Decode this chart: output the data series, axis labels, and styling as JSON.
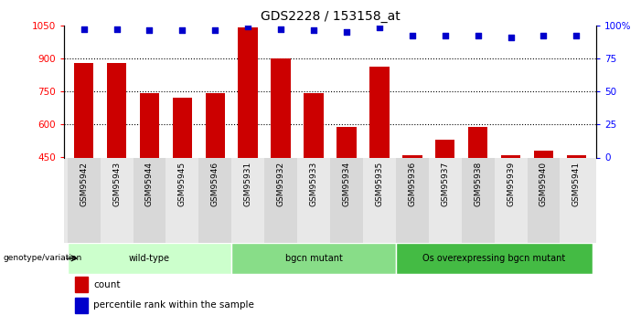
{
  "title": "GDS2228 / 153158_at",
  "samples": [
    "GSM95942",
    "GSM95943",
    "GSM95944",
    "GSM95945",
    "GSM95946",
    "GSM95931",
    "GSM95932",
    "GSM95933",
    "GSM95934",
    "GSM95935",
    "GSM95936",
    "GSM95937",
    "GSM95938",
    "GSM95939",
    "GSM95940",
    "GSM95941"
  ],
  "counts": [
    880,
    880,
    740,
    720,
    740,
    1040,
    900,
    740,
    590,
    860,
    460,
    530,
    590,
    460,
    480,
    460
  ],
  "percentile_ranks": [
    97,
    97,
    96,
    96,
    96,
    99,
    97,
    96,
    95,
    98,
    92,
    92,
    92,
    91,
    92,
    92
  ],
  "bar_color": "#cc0000",
  "dot_color": "#0000cc",
  "ylim_left": [
    450,
    1050
  ],
  "ylim_right": [
    0,
    100
  ],
  "yticks_left": [
    450,
    600,
    750,
    900,
    1050
  ],
  "yticks_right": [
    0,
    25,
    50,
    75,
    100
  ],
  "yticklabels_right": [
    "0",
    "25",
    "50",
    "75",
    "100%"
  ],
  "groups": [
    {
      "label": "wild-type",
      "start": 0,
      "end": 5,
      "color": "#ccffcc"
    },
    {
      "label": "bgcn mutant",
      "start": 5,
      "end": 10,
      "color": "#88dd88"
    },
    {
      "label": "Os overexpressing bgcn mutant",
      "start": 10,
      "end": 16,
      "color": "#44bb44"
    }
  ],
  "genotype_label": "genotype/variation",
  "legend_count_label": "count",
  "legend_percentile_label": "percentile rank within the sample",
  "background_color": "#ffffff",
  "tick_label_bg": "#cccccc",
  "bar_width": 0.6,
  "xlim": [
    -0.6,
    15.6
  ]
}
